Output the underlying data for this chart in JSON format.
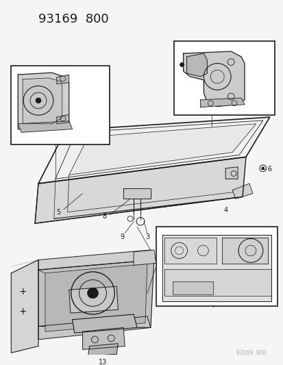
{
  "title": "93169  800",
  "background_color": "#f5f5f5",
  "line_color": "#1a1a1a",
  "fig_width": 4.14,
  "fig_height": 5.33,
  "dpi": 100,
  "watermark": "93169  800",
  "watermark_color": "#aaaaaa"
}
